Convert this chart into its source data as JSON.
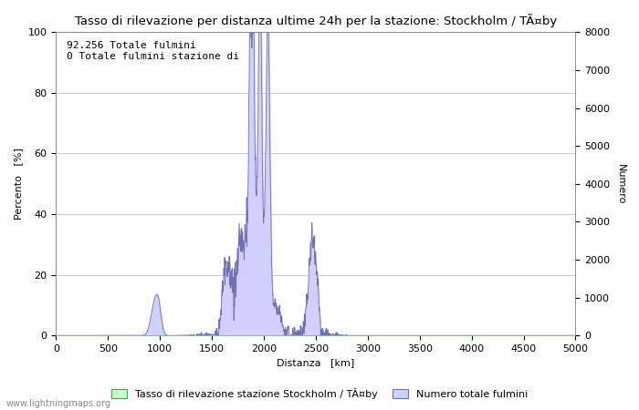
{
  "title": "Tasso di rilevazione per distanza ultime 24h per la stazione: Stockholm / TÃ¤by",
  "xlabel": "Distanza   [km]",
  "ylabel_left": "Percento   [%]",
  "ylabel_right": "Numero",
  "annotation_line1": "92.256 Totale fulmini",
  "annotation_line2": "0 Totale fulmini stazione di",
  "legend_label1": "Tasso di rilevazione stazione Stockholm / TÃ¤by",
  "legend_label2": "Numero totale fulmini",
  "watermark": "www.lightningmaps.org",
  "xlim": [
    0,
    5000
  ],
  "ylim_left": [
    0,
    100
  ],
  "ylim_right": [
    0,
    8000
  ],
  "xticks": [
    0,
    500,
    1000,
    1500,
    2000,
    2500,
    3000,
    3500,
    4000,
    4500,
    5000
  ],
  "yticks_left": [
    0,
    20,
    40,
    60,
    80,
    100
  ],
  "yticks_right": [
    0,
    1000,
    2000,
    3000,
    4000,
    5000,
    6000,
    7000,
    8000
  ],
  "color_fill_blue": "#d0d0ff",
  "color_line_blue": "#7070b0",
  "color_fill_green": "#c8ffc8",
  "color_line_green": "#50a050",
  "bg_color": "#ffffff",
  "grid_color": "#c8c8c8"
}
